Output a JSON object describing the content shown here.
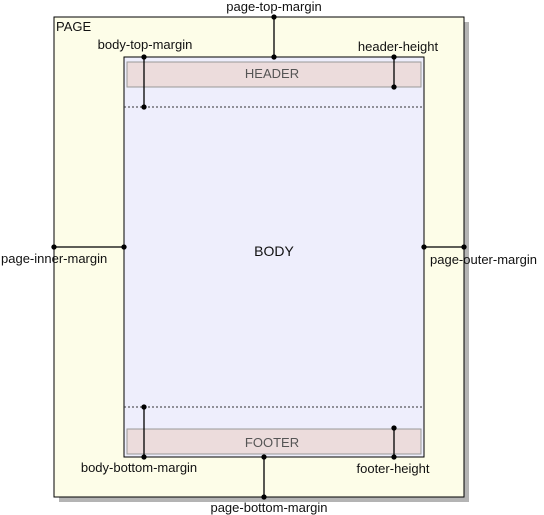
{
  "page_label": "PAGE",
  "header_label": "HEADER",
  "body_label": "BODY",
  "footer_label": "FOOTER",
  "dimensions": {
    "page_top_margin": "page-top-margin",
    "body_top_margin": "body-top-margin",
    "header_height": "header-height",
    "page_inner_margin": "page-inner-margin",
    "page_outer_margin": "page-outer-margin",
    "body_bottom_margin": "body-bottom-margin",
    "footer_height": "footer-height",
    "page_bottom_margin": "page-bottom-margin"
  },
  "colors": {
    "page_fill": "#fdfde8",
    "body_fill": "#eeeefc",
    "band_fill": "#ecdcdc",
    "shadow": "#b0b0b0",
    "stroke": "#000000"
  }
}
